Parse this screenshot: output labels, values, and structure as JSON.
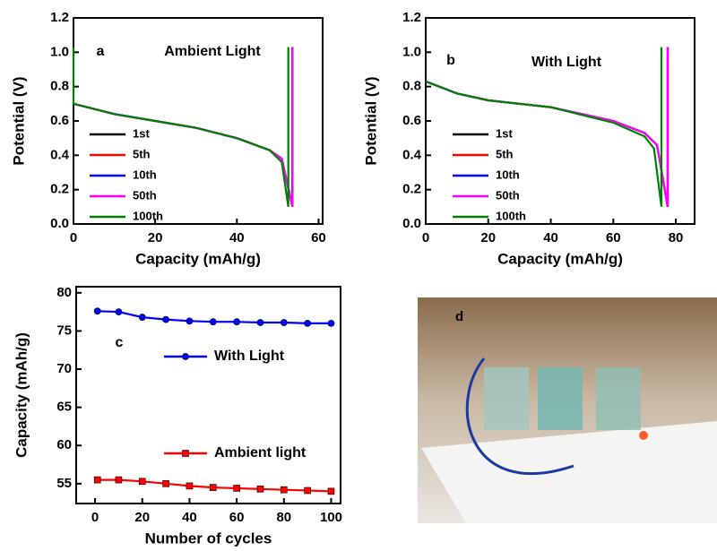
{
  "chart_data": [
    {
      "type": "line",
      "panel_label": "a",
      "annotation": "Ambient Light",
      "x_label": "Capacity (mAh/g)",
      "y_label": "Potential (V)",
      "xlim": [
        0,
        61
      ],
      "ylim": [
        0,
        1.2
      ],
      "xticks": [
        0,
        20,
        40,
        60
      ],
      "yticks": [
        {
          "value": 0,
          "label": "0.0"
        },
        0.2,
        0.4,
        0.6,
        0.8,
        {
          "value": 1,
          "label": "1.0"
        },
        1.2
      ],
      "series": [
        {
          "name": "1st",
          "color": "#000000",
          "x": [
            0,
            10,
            20,
            30,
            40,
            48,
            51,
            53.6,
            53.6
          ],
          "values": [
            0.7,
            0.64,
            0.6,
            0.56,
            0.5,
            0.43,
            0.38,
            0.1,
            1.03
          ]
        },
        {
          "name": "5th",
          "color": "#ff0000",
          "x": [
            0,
            10,
            20,
            30,
            40,
            48,
            51,
            53.6,
            53.6
          ],
          "values": [
            0.7,
            0.64,
            0.6,
            0.56,
            0.5,
            0.43,
            0.38,
            0.1,
            1.03
          ]
        },
        {
          "name": "10th",
          "color": "#0000ff",
          "x": [
            0,
            10,
            20,
            30,
            40,
            48,
            51,
            53.6,
            53.6
          ],
          "values": [
            0.7,
            0.64,
            0.6,
            0.56,
            0.5,
            0.43,
            0.38,
            0.1,
            1.03
          ]
        },
        {
          "name": "50th",
          "color": "#ff00ff",
          "x": [
            0,
            10,
            20,
            30,
            40,
            48,
            51,
            53.6,
            53.6
          ],
          "values": [
            0.7,
            0.64,
            0.6,
            0.56,
            0.5,
            0.43,
            0.38,
            0.1,
            1.03
          ]
        },
        {
          "name": "100th",
          "color": "#008000",
          "x": [
            0,
            0,
            10,
            20,
            30,
            40,
            48,
            51,
            52.6,
            52.6
          ],
          "values": [
            1.03,
            0.7,
            0.64,
            0.6,
            0.56,
            0.5,
            0.43,
            0.36,
            0.1,
            1.03
          ]
        }
      ]
    },
    {
      "type": "line",
      "panel_label": "b",
      "annotation": "With Light",
      "x_label": "Capacity (mAh/g)",
      "y_label": "Potential (V)",
      "xlim": [
        0,
        86
      ],
      "ylim": [
        0,
        1.2
      ],
      "xticks": [
        0,
        20,
        40,
        60,
        80
      ],
      "yticks": [
        {
          "value": 0,
          "label": "0.0"
        },
        0.2,
        0.4,
        0.6,
        0.8,
        {
          "value": 1,
          "label": "1.0"
        },
        1.2
      ],
      "series": [
        {
          "name": "1st",
          "color": "#000000",
          "x": [
            0,
            10,
            20,
            40,
            60,
            70,
            74,
            77.4,
            77.4
          ],
          "values": [
            0.83,
            0.76,
            0.72,
            0.68,
            0.6,
            0.53,
            0.46,
            0.1,
            1.03
          ]
        },
        {
          "name": "5th",
          "color": "#ff0000",
          "x": [
            0,
            10,
            20,
            40,
            60,
            70,
            74,
            77.4,
            77.4
          ],
          "values": [
            0.83,
            0.76,
            0.72,
            0.68,
            0.6,
            0.53,
            0.46,
            0.1,
            1.03
          ]
        },
        {
          "name": "10th",
          "color": "#0000ff",
          "x": [
            0,
            10,
            20,
            40,
            60,
            70,
            74,
            77.4,
            77.4
          ],
          "values": [
            0.83,
            0.76,
            0.72,
            0.68,
            0.6,
            0.53,
            0.46,
            0.1,
            1.03
          ]
        },
        {
          "name": "50th",
          "color": "#ff00ff",
          "x": [
            0,
            10,
            20,
            40,
            60,
            70,
            74,
            77.4,
            77.4
          ],
          "values": [
            0.83,
            0.76,
            0.72,
            0.68,
            0.6,
            0.53,
            0.46,
            0.1,
            1.03
          ]
        },
        {
          "name": "100th",
          "color": "#008000",
          "x": [
            0,
            10,
            20,
            40,
            60,
            70,
            73,
            75.4,
            75.4
          ],
          "values": [
            0.83,
            0.76,
            0.72,
            0.68,
            0.59,
            0.51,
            0.44,
            0.1,
            1.03
          ]
        }
      ]
    },
    {
      "type": "line",
      "panel_label": "c",
      "x_label": "Number of cycles",
      "y_label": "Capacity (mAh/g)",
      "xlim": [
        -8,
        104
      ],
      "ylim": [
        52.4,
        80.8
      ],
      "xticks": [
        0,
        20,
        40,
        60,
        80,
        100
      ],
      "yticks": [
        55,
        60,
        65,
        70,
        75,
        80
      ],
      "x": [
        1,
        10,
        20,
        30,
        40,
        50,
        60,
        70,
        80,
        90,
        100
      ],
      "series": [
        {
          "name": "With Light",
          "color": "#0000ff",
          "marker": "circle",
          "values": [
            77.6,
            77.5,
            76.8,
            76.5,
            76.3,
            76.2,
            76.2,
            76.1,
            76.1,
            76.0,
            76.0
          ]
        },
        {
          "name": "Ambient light",
          "color": "#ff0000",
          "marker": "square",
          "values": [
            55.5,
            55.5,
            55.3,
            55.0,
            54.7,
            54.5,
            54.4,
            54.3,
            54.2,
            54.1,
            54.0
          ]
        }
      ]
    }
  ],
  "photo": {
    "label": "d"
  }
}
